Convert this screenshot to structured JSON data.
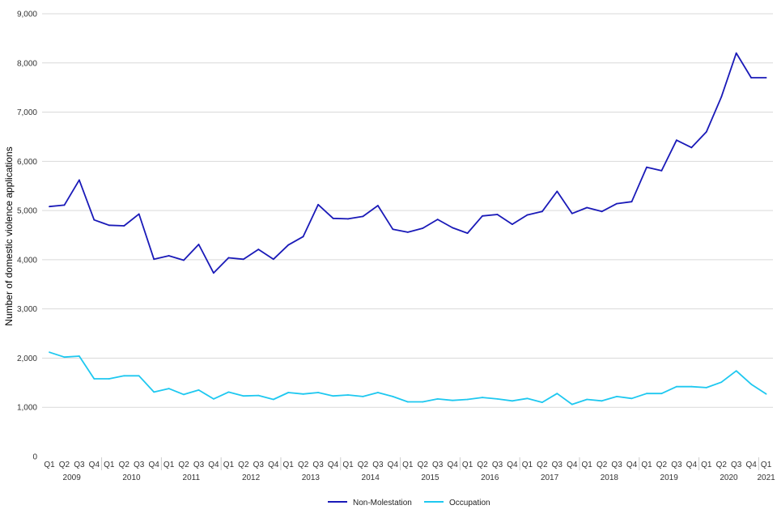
{
  "chart_data": {
    "type": "line",
    "ylabel": "Number of domestic violence applications",
    "ylim": [
      0,
      9000
    ],
    "yticks": [
      "0",
      "1,000",
      "2,000",
      "3,000",
      "4,000",
      "5,000",
      "6,000",
      "7,000",
      "8,000",
      "9,000"
    ],
    "grid": true,
    "legend_position": "bottom",
    "quarters": [
      "Q1",
      "Q2",
      "Q3",
      "Q4",
      "Q1",
      "Q2",
      "Q3",
      "Q4",
      "Q1",
      "Q2",
      "Q3",
      "Q4",
      "Q1",
      "Q2",
      "Q3",
      "Q4",
      "Q1",
      "Q2",
      "Q3",
      "Q4",
      "Q1",
      "Q2",
      "Q3",
      "Q4",
      "Q1",
      "Q2",
      "Q3",
      "Q4",
      "Q1",
      "Q2",
      "Q3",
      "Q4",
      "Q1",
      "Q2",
      "Q3",
      "Q4",
      "Q1",
      "Q2",
      "Q3",
      "Q4",
      "Q1",
      "Q2",
      "Q3",
      "Q4",
      "Q1",
      "Q2",
      "Q3",
      "Q4",
      "Q1"
    ],
    "years": [
      "2009",
      "2010",
      "2011",
      "2012",
      "2013",
      "2014",
      "2015",
      "2016",
      "2017",
      "2018",
      "2019",
      "2020",
      "2021"
    ],
    "series": [
      {
        "name": "Non-Molestation",
        "color": "#1a1ab8",
        "values": [
          5080,
          5110,
          5620,
          4810,
          4700,
          4690,
          4930,
          4010,
          4080,
          3990,
          4310,
          3730,
          4040,
          4010,
          4210,
          4010,
          4300,
          4470,
          5120,
          4840,
          4830,
          4880,
          5100,
          4620,
          4560,
          4640,
          4820,
          4650,
          4540,
          4890,
          4920,
          4720,
          4910,
          4980,
          5390,
          4940,
          5060,
          4980,
          5140,
          5180,
          5880,
          5810,
          6430,
          6280,
          6600,
          7310,
          8200,
          7700,
          7700
        ]
      },
      {
        "name": "Occupation",
        "color": "#1ec8f0",
        "values": [
          2120,
          2020,
          2040,
          1580,
          1580,
          1640,
          1640,
          1310,
          1380,
          1260,
          1350,
          1170,
          1310,
          1230,
          1240,
          1160,
          1300,
          1270,
          1300,
          1230,
          1250,
          1220,
          1300,
          1220,
          1110,
          1110,
          1170,
          1140,
          1160,
          1200,
          1170,
          1130,
          1180,
          1100,
          1280,
          1060,
          1160,
          1130,
          1220,
          1180,
          1280,
          1280,
          1420,
          1420,
          1400,
          1510,
          1740,
          1470,
          1270
        ]
      }
    ]
  }
}
